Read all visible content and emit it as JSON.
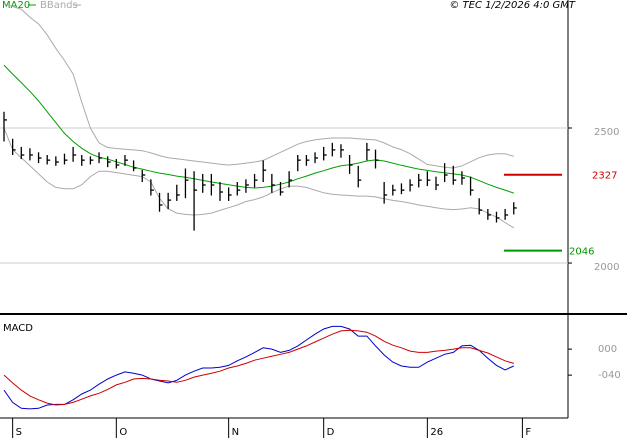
{
  "chart_data": [
    {
      "type": "ohlc",
      "copyright": "© TEC 1/2/2026 4:0 GMT",
      "categories": [
        null,
        "S",
        null,
        null,
        null,
        null,
        null,
        null,
        null,
        null,
        null,
        null,
        null,
        "O",
        null,
        null,
        null,
        null,
        null,
        null,
        null,
        null,
        null,
        null,
        null,
        null,
        "N",
        null,
        null,
        null,
        null,
        null,
        null,
        null,
        null,
        null,
        null,
        "D",
        null,
        null,
        null,
        null,
        null,
        null,
        null,
        null,
        null,
        null,
        null,
        "26",
        null,
        null,
        null,
        null,
        null,
        null,
        null,
        null,
        null,
        null,
        "F"
      ],
      "high": [
        2560,
        2460,
        2430,
        2425,
        2410,
        2400,
        2395,
        2405,
        2430,
        2400,
        2395,
        2410,
        2395,
        2385,
        2400,
        2380,
        2345,
        2310,
        2260,
        2260,
        2290,
        2350,
        2340,
        2330,
        2330,
        2300,
        2280,
        2300,
        2310,
        2330,
        2380,
        2330,
        2300,
        2340,
        2400,
        2400,
        2410,
        2430,
        2445,
        2440,
        2400,
        2360,
        2445,
        2420,
        2300,
        2290,
        2295,
        2310,
        2330,
        2340,
        2320,
        2370,
        2360,
        2340,
        2320,
        2240,
        2200,
        2190,
        2200,
        2225,
        null
      ],
      "low": [
        2450,
        2400,
        2385,
        2380,
        2370,
        2365,
        2360,
        2365,
        2375,
        2360,
        2365,
        2370,
        2355,
        2350,
        2360,
        2340,
        2300,
        2250,
        2190,
        2200,
        2230,
        2240,
        2120,
        2260,
        2250,
        2230,
        2230,
        2250,
        2260,
        2280,
        2300,
        2260,
        2250,
        2280,
        2340,
        2360,
        2370,
        2380,
        2395,
        2390,
        2330,
        2280,
        2380,
        2350,
        2220,
        2250,
        2255,
        2265,
        2280,
        2285,
        2270,
        2300,
        2290,
        2290,
        2250,
        2180,
        2160,
        2150,
        2160,
        2180,
        null
      ],
      "close": [
        2530,
        2419,
        2400,
        2400,
        2389,
        2381,
        2374,
        2381,
        2400,
        2381,
        2381,
        2389,
        2374,
        2363,
        2381,
        2352,
        2326,
        2270,
        2215,
        2233,
        2252,
        2307,
        2270,
        2289,
        2289,
        2263,
        2252,
        2270,
        2289,
        2307,
        2344,
        2289,
        2263,
        2307,
        2381,
        2381,
        2389,
        2400,
        2419,
        2419,
        2363,
        2307,
        2419,
        2381,
        2252,
        2270,
        2270,
        2289,
        2307,
        2307,
        2289,
        2326,
        2307,
        2315,
        2270,
        2196,
        2178,
        2167,
        2178,
        2204,
        null
      ],
      "bar_color": "#000000",
      "series": [
        {
          "name": "MA20",
          "color": "#00a000",
          "values": [
            2733,
            2700,
            2668,
            2636,
            2600,
            2560,
            2520,
            2480,
            2450,
            2425,
            2405,
            2392,
            2385,
            2375,
            2365,
            2355,
            2348,
            2340,
            2333,
            2328,
            2322,
            2318,
            2312,
            2306,
            2300,
            2295,
            2290,
            2285,
            2280,
            2278,
            2280,
            2285,
            2292,
            2300,
            2312,
            2322,
            2333,
            2342,
            2352,
            2360,
            2364,
            2370,
            2378,
            2382,
            2378,
            2370,
            2362,
            2355,
            2348,
            2343,
            2338,
            2334,
            2330,
            2326,
            2318,
            2305,
            2292,
            2280,
            2270,
            2259,
            null
          ]
        },
        {
          "name": "BBands",
          "color": "#aaaaaa",
          "upper": [
            2960,
            2950,
            2940,
            2910,
            2885,
            2845,
            2795,
            2750,
            2700,
            2595,
            2500,
            2445,
            2428,
            2424,
            2421,
            2419,
            2416,
            2408,
            2398,
            2390,
            2386,
            2382,
            2378,
            2374,
            2370,
            2366,
            2363,
            2366,
            2370,
            2374,
            2380,
            2395,
            2410,
            2425,
            2440,
            2450,
            2456,
            2460,
            2463,
            2463,
            2463,
            2460,
            2458,
            2456,
            2445,
            2430,
            2420,
            2405,
            2385,
            2365,
            2360,
            2355,
            2352,
            2360,
            2375,
            2390,
            2400,
            2405,
            2405,
            2395,
            null
          ],
          "lower": [
            2500,
            2420,
            2390,
            2360,
            2330,
            2300,
            2280,
            2275,
            2275,
            2290,
            2320,
            2340,
            2340,
            2335,
            2330,
            2325,
            2320,
            2300,
            2240,
            2200,
            2185,
            2180,
            2178,
            2180,
            2185,
            2195,
            2205,
            2215,
            2228,
            2235,
            2245,
            2260,
            2275,
            2285,
            2285,
            2280,
            2270,
            2260,
            2255,
            2252,
            2250,
            2248,
            2248,
            2245,
            2238,
            2232,
            2228,
            2222,
            2215,
            2210,
            2205,
            2200,
            2198,
            2200,
            2205,
            2200,
            2185,
            2170,
            2150,
            2130,
            null
          ]
        }
      ],
      "annotations": [
        {
          "value": 2327,
          "color": "#cc0000"
        },
        {
          "value": 2046,
          "color": "#009900"
        }
      ],
      "ylim": [
        1815,
        2974
      ],
      "yticks": [
        2500,
        2000
      ],
      "grid": true
    },
    {
      "type": "line",
      "title": "MACD",
      "series": [
        {
          "color": "#0000cc",
          "values": [
            -63,
            -82,
            -91,
            -92,
            -91,
            -86,
            -85,
            -85,
            -78,
            -69,
            -63,
            -54,
            -46,
            -40,
            -35,
            -37,
            -40,
            -46,
            -49,
            -52,
            -48,
            -40,
            -34,
            -29,
            -29,
            -28,
            -25,
            -18,
            -12,
            -5,
            2,
            0,
            -5,
            -2,
            5,
            14,
            23,
            31,
            35,
            35,
            31,
            20,
            20,
            5,
            -9,
            -20,
            -26,
            -28,
            -28,
            -20,
            -14,
            -8,
            -5,
            5,
            6,
            -2,
            -14,
            -25,
            -32,
            -26,
            null
          ]
        },
        {
          "color": "#cc0000",
          "values": [
            -40,
            -52,
            -63,
            -72,
            -78,
            -83,
            -86,
            -85,
            -82,
            -77,
            -72,
            -68,
            -62,
            -55,
            -51,
            -46,
            -45,
            -46,
            -48,
            -49,
            -51,
            -48,
            -43,
            -40,
            -37,
            -34,
            -29,
            -26,
            -22,
            -17,
            -14,
            -11,
            -8,
            -5,
            0,
            5,
            11,
            17,
            23,
            28,
            29,
            28,
            26,
            20,
            12,
            6,
            2,
            -3,
            -5,
            -5,
            -3,
            -2,
            0,
            2,
            2,
            -2,
            -6,
            -12,
            -18,
            -22,
            null
          ]
        }
      ],
      "ylim": [
        -106,
        51
      ],
      "yticks": [
        {
          "value": 0,
          "label": "000"
        },
        {
          "value": -40,
          "label": "-040"
        }
      ]
    }
  ]
}
